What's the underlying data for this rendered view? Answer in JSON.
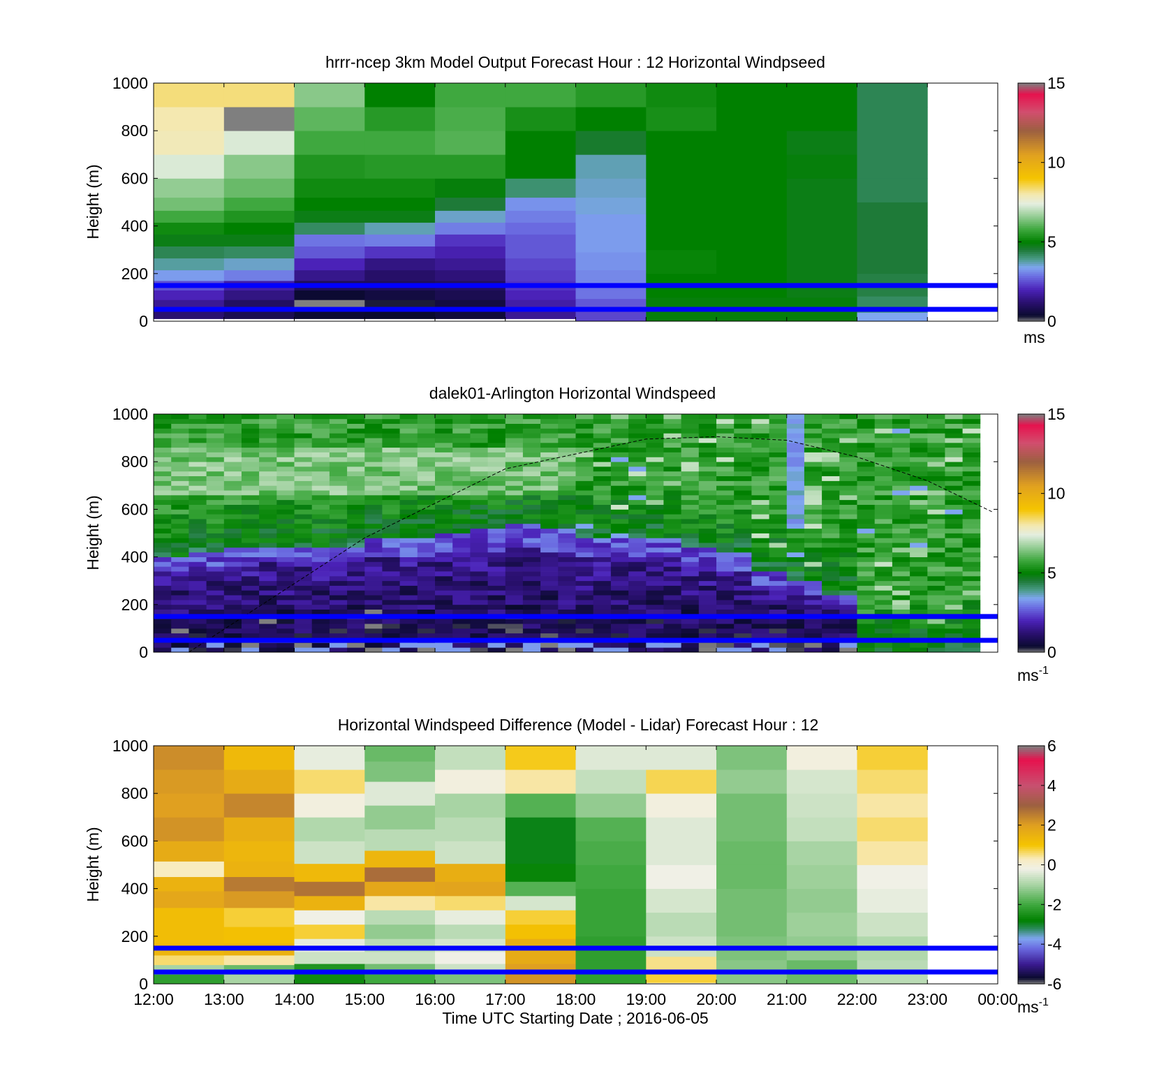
{
  "colors": {
    "hband": "#0000ff",
    "speed_scale": [
      {
        "v": 0.0,
        "c": "#7f7f7f"
      },
      {
        "v": 0.35,
        "c": "#0a0a2e"
      },
      {
        "v": 1.2,
        "c": "#2a1070"
      },
      {
        "v": 2.0,
        "c": "#4b22b8"
      },
      {
        "v": 2.8,
        "c": "#6a6ae0"
      },
      {
        "v": 3.4,
        "c": "#7fa6f0"
      },
      {
        "v": 3.9,
        "c": "#4c9c8c"
      },
      {
        "v": 4.5,
        "c": "#1e7a38"
      },
      {
        "v": 5.0,
        "c": "#008000"
      },
      {
        "v": 5.8,
        "c": "#3fa83f"
      },
      {
        "v": 6.6,
        "c": "#93cc93"
      },
      {
        "v": 7.4,
        "c": "#e4eee0"
      },
      {
        "v": 8.0,
        "c": "#f4e8b0"
      },
      {
        "v": 9.0,
        "c": "#f5c400"
      },
      {
        "v": 10.5,
        "c": "#e0a020"
      },
      {
        "v": 12.0,
        "c": "#9c6040"
      },
      {
        "v": 13.2,
        "c": "#d24e6e"
      },
      {
        "v": 14.3,
        "c": "#e6124e"
      },
      {
        "v": 15.0,
        "c": "#7f7f7f"
      }
    ],
    "diff_scale": [
      {
        "v": -6.0,
        "c": "#7f7f7f"
      },
      {
        "v": -5.7,
        "c": "#0a0a2e"
      },
      {
        "v": -5.0,
        "c": "#3a1a90"
      },
      {
        "v": -4.2,
        "c": "#6a6ae0"
      },
      {
        "v": -3.7,
        "c": "#7fa6f0"
      },
      {
        "v": -3.2,
        "c": "#2a8a5a"
      },
      {
        "v": -2.8,
        "c": "#008000"
      },
      {
        "v": -2.0,
        "c": "#3fa83f"
      },
      {
        "v": -1.0,
        "c": "#a8d4a4"
      },
      {
        "v": -0.2,
        "c": "#f0f0e6"
      },
      {
        "v": 0.3,
        "c": "#f8ecc0"
      },
      {
        "v": 1.0,
        "c": "#f5c400"
      },
      {
        "v": 2.0,
        "c": "#e0a020"
      },
      {
        "v": 3.0,
        "c": "#9c6040"
      },
      {
        "v": 4.0,
        "c": "#c85070"
      },
      {
        "v": 5.3,
        "c": "#e6124e"
      },
      {
        "v": 6.0,
        "c": "#7f7f7f"
      }
    ]
  },
  "chart_data": [
    {
      "type": "heatmap",
      "title": "hrrr-ncep 3km Model Output   Forecast Hour : 12 Horizontal Windpseed",
      "xlabel": "",
      "ylabel": "Height (m)",
      "xlim": [
        "12:00",
        "00:00"
      ],
      "ylim": [
        0,
        1000
      ],
      "y_ticks": [
        "0",
        "200",
        "400",
        "600",
        "800",
        "1000"
      ],
      "colorbar": {
        "range": [
          0,
          15
        ],
        "ticks": [
          "0",
          "5",
          "10",
          "15"
        ],
        "label": "ms",
        "label_sup": ""
      },
      "height_bands_m": [
        50,
        150
      ],
      "columns": [
        {
          "start": "12:00",
          "end": "13:00",
          "heights_m": [
            30,
            70,
            110,
            150,
            190,
            240,
            290,
            340,
            390,
            440,
            490,
            550,
            650,
            750,
            850,
            950
          ],
          "values": [
            1.2,
            1.6,
            2.0,
            2.5,
            3.3,
            3.8,
            4.3,
            4.8,
            5.2,
            5.8,
            6.3,
            6.6,
            7.3,
            7.9,
            8.0,
            8.3
          ]
        },
        {
          "start": "13:00",
          "end": "14:00",
          "heights_m": [
            30,
            70,
            110,
            150,
            190,
            240,
            290,
            340,
            390,
            440,
            490,
            550,
            650,
            750,
            850,
            950
          ],
          "values": [
            0.8,
            1.0,
            1.4,
            1.8,
            3.0,
            3.6,
            4.2,
            4.8,
            5.0,
            5.4,
            5.8,
            6.2,
            6.5,
            7.3,
            0.0,
            8.3
          ]
        },
        {
          "start": "14:00",
          "end": "15:00",
          "heights_m": [
            30,
            70,
            110,
            150,
            190,
            240,
            290,
            340,
            390,
            440,
            490,
            550,
            650,
            750,
            850,
            950
          ],
          "values": [
            0.4,
            0.0,
            0.4,
            0.9,
            1.5,
            2.0,
            2.6,
            2.9,
            4.2,
            4.8,
            5.0,
            5.2,
            5.4,
            5.8,
            6.1,
            6.5
          ]
        },
        {
          "start": "15:00",
          "end": "16:00",
          "heights_m": [
            30,
            70,
            110,
            150,
            190,
            240,
            290,
            340,
            390,
            440,
            490,
            550,
            650,
            750,
            850,
            950
          ],
          "values": [
            0.35,
            0.3,
            0.6,
            0.9,
            1.1,
            1.4,
            2.2,
            3.0,
            3.7,
            4.8,
            5.0,
            5.2,
            5.5,
            5.8,
            5.5,
            5.0
          ]
        },
        {
          "start": "16:00",
          "end": "17:00",
          "heights_m": [
            30,
            70,
            110,
            150,
            190,
            240,
            290,
            340,
            390,
            440,
            490,
            550,
            650,
            750,
            850,
            950
          ],
          "values": [
            0.5,
            0.6,
            0.8,
            1.0,
            1.3,
            1.6,
            1.9,
            2.2,
            3.0,
            3.6,
            4.5,
            4.9,
            5.5,
            6.0,
            5.9,
            5.8
          ]
        },
        {
          "start": "17:00",
          "end": "18:00",
          "heights_m": [
            30,
            70,
            110,
            150,
            190,
            240,
            290,
            340,
            390,
            440,
            490,
            550,
            650,
            750,
            850,
            950
          ],
          "values": [
            1.6,
            1.8,
            2.0,
            2.2,
            2.3,
            2.4,
            2.6,
            2.6,
            2.8,
            3.0,
            3.2,
            4.1,
            5.0,
            5.0,
            5.3,
            5.8
          ]
        },
        {
          "start": "18:00",
          "end": "19:00",
          "heights_m": [
            20,
            70,
            120,
            180,
            250,
            330,
            410,
            490,
            550,
            650,
            750,
            850,
            950
          ],
          "values": [
            2.4,
            2.6,
            2.9,
            3.1,
            3.2,
            3.3,
            3.3,
            3.5,
            3.6,
            3.7,
            4.6,
            5.0,
            5.5
          ]
        },
        {
          "start": "19:00",
          "end": "20:00",
          "heights_m": [
            50,
            150,
            250,
            350,
            450,
            550,
            650,
            750,
            850,
            950
          ],
          "values": [
            4.9,
            5.0,
            5.1,
            5.0,
            5.0,
            5.0,
            5.0,
            5.0,
            5.3,
            5.2
          ]
        },
        {
          "start": "20:00",
          "end": "21:00",
          "heights_m": [
            50,
            150,
            250,
            350,
            450,
            550,
            650,
            750,
            850,
            950
          ],
          "values": [
            4.9,
            5.0,
            5.0,
            5.0,
            5.0,
            5.0,
            5.0,
            5.0,
            5.0,
            5.0
          ]
        },
        {
          "start": "21:00",
          "end": "22:00",
          "heights_m": [
            50,
            150,
            250,
            350,
            450,
            550,
            650,
            750,
            850,
            950
          ],
          "values": [
            4.9,
            4.8,
            4.8,
            4.8,
            4.8,
            4.8,
            4.9,
            4.8,
            5.0,
            5.0
          ]
        },
        {
          "start": "22:00",
          "end": "23:00",
          "heights_m": [
            15,
            60,
            150,
            250,
            350,
            450,
            550,
            650,
            750,
            850,
            950
          ],
          "values": [
            3.4,
            4.2,
            4.4,
            4.5,
            4.5,
            4.5,
            4.3,
            4.3,
            4.3,
            4.3,
            4.3
          ]
        }
      ]
    },
    {
      "type": "heatmap",
      "title": "dalek01-Arlington  Horizontal Windspeed",
      "xlabel": "",
      "ylabel": "Height (m)",
      "xlim": [
        "12:00",
        "00:00"
      ],
      "ylim": [
        0,
        1000
      ],
      "y_ticks": [
        "0",
        "200",
        "400",
        "600",
        "800",
        "1000"
      ],
      "colorbar": {
        "range": [
          0,
          15
        ],
        "ticks": [
          "0",
          "5",
          "10",
          "15"
        ],
        "label": "ms",
        "label_sup": "-1"
      },
      "height_bands_m": [
        50,
        150
      ],
      "scan_interval_minutes": 15,
      "low_wind_top_m": [
        395,
        415,
        430,
        440,
        430,
        440,
        465,
        475,
        495,
        510,
        525,
        505,
        475,
        480,
        470,
        430,
        410,
        340,
        285,
        235
      ],
      "curve": {
        "description": "dashed",
        "points": [
          [
            "12:30",
            0
          ],
          [
            "15:00",
            480
          ],
          [
            "17:00",
            770
          ],
          [
            "19:00",
            895
          ],
          [
            "20:00",
            905
          ],
          [
            "21:00",
            890
          ],
          [
            "22:00",
            820
          ],
          [
            "23:00",
            720
          ],
          [
            "23:55",
            590
          ]
        ]
      }
    },
    {
      "type": "heatmap",
      "title": "Horizontal Windspeed Difference (Model - Lidar) Forecast Hour : 12",
      "xlabel": "Time UTC  Starting Date ; 2016-06-05",
      "ylabel": "Height (m)",
      "x_ticks": [
        "12:00",
        "13:00",
        "14:00",
        "15:00",
        "16:00",
        "17:00",
        "18:00",
        "19:00",
        "20:00",
        "21:00",
        "22:00",
        "23:00",
        "00:00"
      ],
      "xlim": [
        "12:00",
        "00:00"
      ],
      "ylim": [
        0,
        1000
      ],
      "y_ticks": [
        "0",
        "200",
        "400",
        "600",
        "800",
        "1000"
      ],
      "colorbar": {
        "range": [
          -6,
          6
        ],
        "ticks": [
          "-6",
          "-4",
          "-2",
          "0",
          "2",
          "4",
          "6"
        ],
        "label": "ms",
        "label_sup": "-1"
      },
      "height_bands_m": [
        50,
        150
      ],
      "columns": [
        {
          "start": "12:00",
          "end": "13:00",
          "heights_m": [
            20,
            60,
            100,
            140,
            200,
            280,
            360,
            420,
            480,
            550,
            650,
            750,
            850,
            950
          ],
          "values": [
            -2.2,
            -1.0,
            0.6,
            1.4,
            1.2,
            1.2,
            1.8,
            1.5,
            0.3,
            1.7,
            2.2,
            2.0,
            2.1,
            2.3
          ]
        },
        {
          "start": "13:00",
          "end": "14:00",
          "heights_m": [
            20,
            60,
            100,
            140,
            200,
            280,
            360,
            420,
            480,
            550,
            650,
            750,
            850,
            950
          ],
          "values": [
            -1.0,
            -1.6,
            0.4,
            1.5,
            1.1,
            0.8,
            2.1,
            2.6,
            1.5,
            1.4,
            1.6,
            2.4,
            1.7,
            1.3
          ]
        },
        {
          "start": "14:00",
          "end": "15:00",
          "heights_m": [
            20,
            60,
            110,
            160,
            220,
            280,
            340,
            400,
            460,
            550,
            650,
            750,
            850,
            950
          ],
          "values": [
            -2.6,
            -2.4,
            -0.6,
            -0.3,
            0.8,
            -0.2,
            1.5,
            2.7,
            1.3,
            -0.6,
            -0.9,
            -0.1,
            0.6,
            -0.3
          ]
        },
        {
          "start": "15:00",
          "end": "16:00",
          "heights_m": [
            20,
            60,
            110,
            160,
            220,
            280,
            340,
            400,
            460,
            520,
            600,
            700,
            800,
            900,
            970
          ],
          "values": [
            -2.0,
            -1.5,
            -0.6,
            -0.8,
            -1.2,
            -0.8,
            0.4,
            1.8,
            2.8,
            1.4,
            -0.8,
            -1.2,
            -0.4,
            -1.4,
            -1.6
          ]
        },
        {
          "start": "16:00",
          "end": "17:00",
          "heights_m": [
            20,
            60,
            110,
            160,
            220,
            280,
            340,
            400,
            460,
            550,
            650,
            750,
            850,
            950
          ],
          "values": [
            -1.4,
            -0.6,
            -0.2,
            -0.5,
            -0.8,
            -0.3,
            0.6,
            1.9,
            1.6,
            -0.6,
            -0.8,
            -1.0,
            -0.1,
            -0.7
          ]
        },
        {
          "start": "17:00",
          "end": "18:00",
          "heights_m": [
            20,
            60,
            110,
            160,
            220,
            280,
            340,
            400,
            460,
            550,
            650,
            750,
            850,
            950
          ],
          "values": [
            2.2,
            2.0,
            1.7,
            1.6,
            1.1,
            0.8,
            -0.5,
            -1.8,
            -2.7,
            -2.9,
            -2.9,
            -1.8,
            0.4,
            0.9
          ]
        },
        {
          "start": "18:00",
          "end": "19:00",
          "heights_m": [
            50,
            150,
            250,
            350,
            450,
            550,
            650,
            750,
            850,
            950
          ],
          "values": [
            -2.2,
            -2.2,
            -2.1,
            -2.1,
            -2.0,
            -1.9,
            -1.8,
            -1.2,
            -0.7,
            -0.4
          ]
        },
        {
          "start": "19:00",
          "end": "20:00",
          "heights_m": [
            30,
            80,
            150,
            250,
            350,
            450,
            550,
            650,
            750,
            850,
            950
          ],
          "values": [
            0.8,
            0.5,
            -0.6,
            -0.8,
            -0.5,
            -0.2,
            -0.4,
            -0.4,
            -0.1,
            0.7,
            -0.4
          ]
        },
        {
          "start": "20:00",
          "end": "21:00",
          "heights_m": [
            50,
            150,
            250,
            350,
            450,
            550,
            650,
            750,
            850,
            950
          ],
          "values": [
            -1.3,
            -1.4,
            -1.5,
            -1.5,
            -1.6,
            -1.6,
            -1.5,
            -1.5,
            -1.2,
            -1.4
          ]
        },
        {
          "start": "21:00",
          "end": "22:00",
          "heights_m": [
            50,
            150,
            250,
            350,
            450,
            550,
            650,
            750,
            850,
            950
          ],
          "values": [
            -1.6,
            -1.2,
            -1.1,
            -1.2,
            -1.1,
            -1.0,
            -0.7,
            -0.6,
            -0.5,
            -0.1
          ]
        },
        {
          "start": "22:00",
          "end": "23:00",
          "heights_m": [
            50,
            150,
            250,
            350,
            450,
            550,
            650,
            750,
            850,
            950
          ],
          "values": [
            -0.8,
            -0.9,
            -0.6,
            -0.3,
            -0.2,
            0.4,
            0.6,
            0.4,
            0.6,
            0.8
          ]
        }
      ]
    }
  ]
}
